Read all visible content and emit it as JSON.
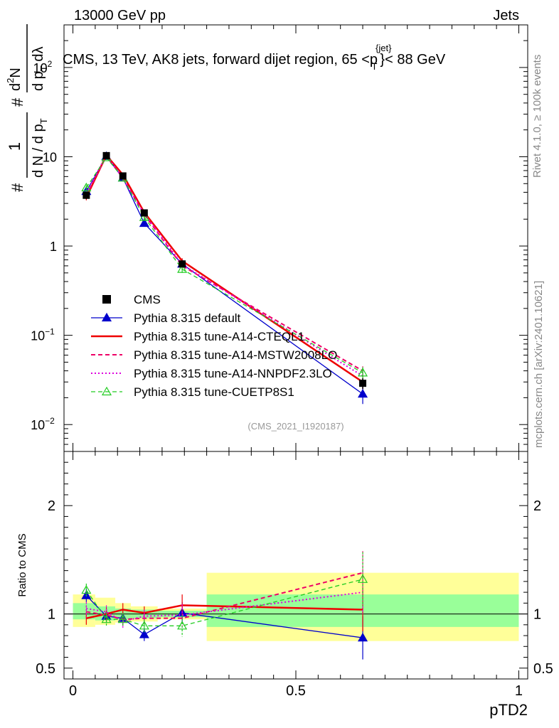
{
  "header": {
    "left": "13000 GeV pp",
    "right": "Jets"
  },
  "side_labels": {
    "rivet": "Rivet 4.1.0, ≥ 100k events",
    "mcplots": "mcplots.cern.ch [arXiv:2401.10621]"
  },
  "chart_data": [
    {
      "type": "line",
      "title_parts": {
        "pre": "CMS, 13 TeV, AK8 jets, forward dijet region, 65 <p",
        "sup": "{jet}",
        "sub": "T",
        "post": "}< 88 GeV"
      },
      "watermark": "(CMS_2021_I1920187)",
      "yscale": "log",
      "ylim": [
        0.005,
        300
      ],
      "xlim": [
        -0.02,
        1.02
      ],
      "ylabel_parts": {
        "hash1": "#",
        "frac_num": "1",
        "frac_den": "d N / d p",
        "frac_den_sub": "T",
        "hash2": "#",
        "num2": "d",
        "num2_sup": "2",
        "num2_post": "N",
        "den2": "d p",
        "den2_sub": "T",
        "den2_post": " dλ"
      },
      "y_ticks": [
        {
          "value": 100,
          "base": "10",
          "exp": "2"
        },
        {
          "value": 10,
          "base": "10",
          "exp": ""
        },
        {
          "value": 1,
          "base": "1",
          "exp": ""
        },
        {
          "value": 0.1,
          "base": "10",
          "exp": "−1"
        },
        {
          "value": 0.01,
          "base": "10",
          "exp": "−2"
        }
      ],
      "legend_position": "lower-left",
      "series": [
        {
          "name": "CMS",
          "style": "data",
          "color": "#000000",
          "x": [
            0.03,
            0.075,
            0.112,
            0.16,
            0.245,
            0.65
          ],
          "y": [
            3.7,
            10.3,
            6.1,
            2.35,
            0.63,
            0.029
          ],
          "yerr": [
            0.35,
            0.6,
            0.35,
            0.15,
            0.05,
            0.004
          ]
        },
        {
          "name": "Pythia 8.315 default",
          "style": "solid-triangle",
          "color": "#0000cc",
          "x": [
            0.03,
            0.075,
            0.112,
            0.16,
            0.245,
            0.65
          ],
          "y": [
            4.1,
            10.1,
            5.8,
            1.8,
            0.63,
            0.022
          ],
          "yerr": [
            0.3,
            0.6,
            0.35,
            0.15,
            0.06,
            0.005
          ]
        },
        {
          "name": "Pythia 8.315 tune-A14-CTEQL1",
          "style": "solid",
          "color": "#ee0000",
          "x": [
            0.03,
            0.075,
            0.112,
            0.16,
            0.245,
            0.65
          ],
          "y": [
            3.5,
            10.4,
            6.3,
            2.38,
            0.68,
            0.03
          ],
          "yerr": [
            0.25,
            0.6,
            0.35,
            0.15,
            0.05,
            0.005
          ]
        },
        {
          "name": "Pythia 8.315 tune-A14-MSTW2008LO",
          "style": "dashed",
          "color": "#ee0066",
          "x": [
            0.03,
            0.075,
            0.112,
            0.16,
            0.245,
            0.65
          ],
          "y": [
            3.7,
            10.1,
            5.8,
            2.25,
            0.6,
            0.04
          ],
          "yerr": [
            0.25,
            0.6,
            0.35,
            0.15,
            0.05,
            0.005
          ]
        },
        {
          "name": "Pythia 8.315 tune-A14-NNPDF2.3LO",
          "style": "dotted",
          "color": "#dd00dd",
          "x": [
            0.03,
            0.075,
            0.112,
            0.16,
            0.245,
            0.65
          ],
          "y": [
            3.9,
            10.5,
            5.7,
            2.3,
            0.62,
            0.035
          ],
          "yerr": [
            0.25,
            0.6,
            0.35,
            0.15,
            0.05,
            0.005
          ]
        },
        {
          "name": "Pythia 8.315 tune-CUETP8S1",
          "style": "dashed-open-triangle",
          "color": "#22cc22",
          "x": [
            0.03,
            0.075,
            0.112,
            0.16,
            0.245,
            0.65
          ],
          "y": [
            4.5,
            9.8,
            5.8,
            2.1,
            0.55,
            0.038
          ],
          "yerr": [
            0.3,
            0.6,
            0.35,
            0.15,
            0.05,
            0.006
          ]
        }
      ]
    },
    {
      "type": "line",
      "ylabel": "Ratio to CMS",
      "xlabel": "pTD2",
      "ylim": [
        0.4,
        2.5
      ],
      "xlim": [
        -0.02,
        1.02
      ],
      "x_ticks": [
        {
          "value": 0,
          "label": "0"
        },
        {
          "value": 0.5,
          "label": "0.5"
        },
        {
          "value": 1,
          "label": "1"
        }
      ],
      "y_ticks": [
        {
          "value": 0.5,
          "label": "0.5"
        },
        {
          "value": 1,
          "label": "1"
        },
        {
          "value": 2,
          "label": "2"
        }
      ],
      "bands": [
        {
          "x0": 0.0,
          "x1": 0.05,
          "yellow": [
            0.88,
            1.18
          ],
          "green": [
            0.95,
            1.1
          ]
        },
        {
          "x0": 0.05,
          "x1": 0.095,
          "yellow": [
            0.9,
            1.15
          ],
          "green": [
            0.94,
            1.07
          ]
        },
        {
          "x0": 0.095,
          "x1": 0.13,
          "yellow": [
            0.92,
            1.1
          ],
          "green": [
            0.95,
            1.05
          ]
        },
        {
          "x0": 0.13,
          "x1": 0.19,
          "yellow": [
            0.93,
            1.07
          ],
          "green": [
            0.96,
            1.04
          ]
        },
        {
          "x0": 0.19,
          "x1": 0.3,
          "yellow": [
            0.95,
            1.05
          ],
          "green": [
            0.97,
            1.03
          ]
        },
        {
          "x0": 0.3,
          "x1": 1.0,
          "yellow": [
            0.75,
            1.38
          ],
          "green": [
            0.88,
            1.18
          ]
        }
      ],
      "series": [
        {
          "name": "Pythia 8.315 default",
          "style": "solid-triangle",
          "color": "#0000cc",
          "x": [
            0.03,
            0.075,
            0.112,
            0.16,
            0.245,
            0.65
          ],
          "y": [
            1.17,
            0.98,
            0.96,
            0.81,
            1.01,
            0.78
          ],
          "yerr": [
            0.06,
            0.06,
            0.06,
            0.06,
            0.1,
            0.2
          ]
        },
        {
          "name": "Pythia 8.315 tune-A14-CTEQL1",
          "style": "solid",
          "color": "#ee0000",
          "x": [
            0.03,
            0.075,
            0.112,
            0.16,
            0.245,
            0.65
          ],
          "y": [
            0.96,
            1.0,
            1.04,
            1.01,
            1.08,
            1.04
          ],
          "yerr": [
            0.06,
            0.06,
            0.06,
            0.06,
            0.1,
            0.2
          ]
        },
        {
          "name": "Pythia 8.315 tune-A14-MSTW2008LO",
          "style": "dashed",
          "color": "#ee0066",
          "x": [
            0.03,
            0.075,
            0.112,
            0.16,
            0.245,
            0.65
          ],
          "y": [
            1.02,
            0.99,
            0.95,
            0.96,
            0.96,
            1.38
          ],
          "yerr": [
            0.06,
            0.06,
            0.06,
            0.06,
            0.1,
            0.2
          ]
        },
        {
          "name": "Pythia 8.315 tune-A14-NNPDF2.3LO",
          "style": "dotted",
          "color": "#dd00dd",
          "x": [
            0.03,
            0.075,
            0.112,
            0.16,
            0.245,
            0.65
          ],
          "y": [
            1.05,
            1.02,
            0.93,
            0.98,
            0.99,
            1.2
          ],
          "yerr": [
            0.06,
            0.06,
            0.06,
            0.06,
            0.1,
            0.2
          ]
        },
        {
          "name": "Pythia 8.315 tune-CUETP8S1",
          "style": "dashed-open-triangle",
          "color": "#22cc22",
          "x": [
            0.03,
            0.075,
            0.112,
            0.16,
            0.245,
            0.65
          ],
          "y": [
            1.22,
            0.95,
            0.95,
            0.89,
            0.89,
            1.32
          ],
          "yerr": [
            0.06,
            0.06,
            0.06,
            0.06,
            0.1,
            0.25
          ]
        }
      ]
    }
  ]
}
